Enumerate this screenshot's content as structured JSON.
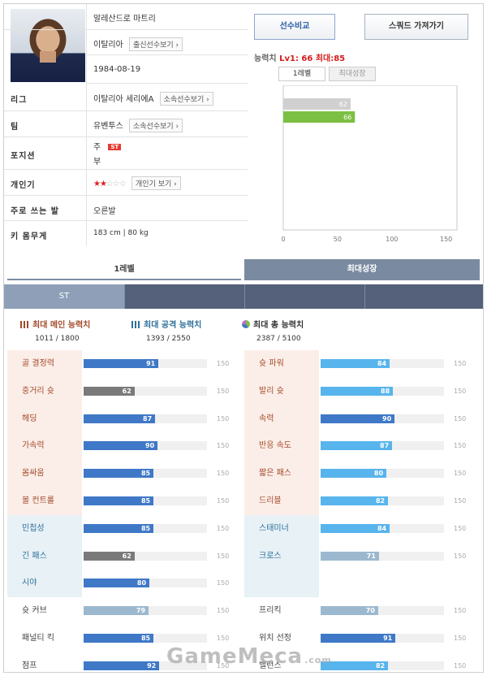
{
  "player": {
    "name": "알레산드로 마트리",
    "country": "이탈리아",
    "country_btn": "출신선수보기 ›",
    "birth": "1984-08-19",
    "rows": [
      {
        "label": "리그",
        "value": "이탈리아 세리에A",
        "btn": "소속선수보기 ›"
      },
      {
        "label": "팀",
        "value": "유벤투스",
        "btn": "소속선수보기 ›"
      },
      {
        "label": "포지션",
        "main": "주",
        "badge": "ST",
        "sub": "부"
      },
      {
        "label": "개인기",
        "stars_on": "★★",
        "stars_off": "☆☆☆",
        "btn": "개인기 보기 ›"
      },
      {
        "label": "주로 쓰는 발",
        "value": "오른발"
      },
      {
        "label": "키 몸무게",
        "value": "183 cm | 80 kg"
      }
    ]
  },
  "buttons": {
    "compare": "선수비교",
    "squad": "스쿼드 가져가기"
  },
  "ability": {
    "prefix": "능력치 ",
    "red": "Lv1: 66 최대:85"
  },
  "mini_tabs": {
    "level1": "1레벨",
    "max": "최대성장"
  },
  "chart_data": {
    "type": "bar",
    "orientation": "horizontal",
    "categories": [
      "ST"
    ],
    "series": [
      {
        "values": [
          62
        ],
        "color": "#d0d0d0"
      },
      {
        "values": [
          66
        ],
        "color": "#7bc043"
      }
    ],
    "xlim": [
      0,
      160
    ],
    "xticks": [
      0,
      50,
      100,
      150
    ]
  },
  "tabs": {
    "level1": "1레벨",
    "max": "최대성장"
  },
  "position": "ST",
  "summary": [
    {
      "label": "최대 메인 능력치",
      "value": "1011 / 1800",
      "color": "#a44a2a"
    },
    {
      "label": "최대 공격 능력치",
      "value": "1393 / 2550",
      "color": "#2e6f9b"
    },
    {
      "label": "최대 총 능력치",
      "value": "2387 / 5100",
      "color": "#333333"
    }
  ],
  "stats_max": "150",
  "stats_left": [
    {
      "name": "골 결정력",
      "value": 91,
      "bg": "pink",
      "color": "dblue"
    },
    {
      "name": "중거리 슛",
      "value": 62,
      "bg": "pink",
      "color": "gray"
    },
    {
      "name": "헤딩",
      "value": 87,
      "bg": "pink",
      "color": "dblue"
    },
    {
      "name": "가속력",
      "value": 90,
      "bg": "pink",
      "color": "dblue"
    },
    {
      "name": "몸싸움",
      "value": 85,
      "bg": "pink",
      "color": "dblue"
    },
    {
      "name": "볼 컨트롤",
      "value": 85,
      "bg": "pink",
      "color": "dblue"
    },
    {
      "name": "민첩성",
      "value": 85,
      "bg": "blue",
      "color": "dblue"
    },
    {
      "name": "긴 패스",
      "value": 62,
      "bg": "blue",
      "color": "gray"
    },
    {
      "name": "시야",
      "value": 80,
      "bg": "blue",
      "color": "dblue"
    },
    {
      "name": "슛 커브",
      "value": 79,
      "bg": "white",
      "color": "pale"
    },
    {
      "name": "패널티 킥",
      "value": 85,
      "bg": "white",
      "color": "dblue"
    },
    {
      "name": "점프",
      "value": 92,
      "bg": "white",
      "color": "dblue"
    }
  ],
  "stats_right": [
    {
      "name": "슛 파워",
      "value": 84,
      "bg": "pink",
      "color": "lblue"
    },
    {
      "name": "발리 슛",
      "value": 88,
      "bg": "pink",
      "color": "lblue"
    },
    {
      "name": "속력",
      "value": 90,
      "bg": "pink",
      "color": "dblue"
    },
    {
      "name": "반응 속도",
      "value": 87,
      "bg": "pink",
      "color": "lblue"
    },
    {
      "name": "짧은 패스",
      "value": 80,
      "bg": "pink",
      "color": "lblue"
    },
    {
      "name": "드리블",
      "value": 82,
      "bg": "pink",
      "color": "lblue"
    },
    {
      "name": "스태미너",
      "value": 84,
      "bg": "blue",
      "color": "lblue"
    },
    {
      "name": "크로스",
      "value": 71,
      "bg": "blue",
      "color": "pale"
    },
    {
      "name": "",
      "value": null,
      "bg": "blue",
      "color": "none"
    },
    {
      "name": "프리킥",
      "value": 70,
      "bg": "white",
      "color": "pale"
    },
    {
      "name": "위치 선정",
      "value": 91,
      "bg": "white",
      "color": "dblue"
    },
    {
      "name": "밸런스",
      "value": 82,
      "bg": "white",
      "color": "lblue"
    }
  ],
  "watermark": {
    "main": "GameMeca",
    "suffix": ".com"
  }
}
